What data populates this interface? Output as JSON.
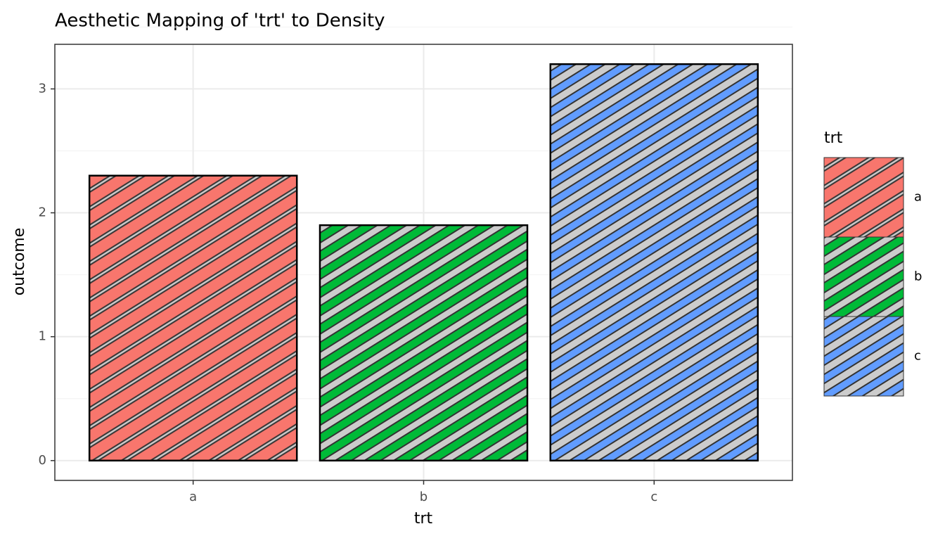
{
  "chart_data": {
    "type": "bar",
    "title": "Aesthetic Mapping of 'trt' to Density",
    "x_label": "trt",
    "y_label": "outcome",
    "categories": [
      "a",
      "b",
      "c"
    ],
    "values": [
      2.3,
      1.9,
      3.2
    ],
    "colors": [
      "#F8766D",
      "#00BA38",
      "#619CFF"
    ],
    "pattern_color": "#CCCCCC",
    "ylim": [
      -0.16,
      3.36
    ],
    "yticks": [
      0,
      1,
      2,
      3
    ],
    "grid": true,
    "legend": {
      "title": "trt",
      "position": "right"
    }
  }
}
